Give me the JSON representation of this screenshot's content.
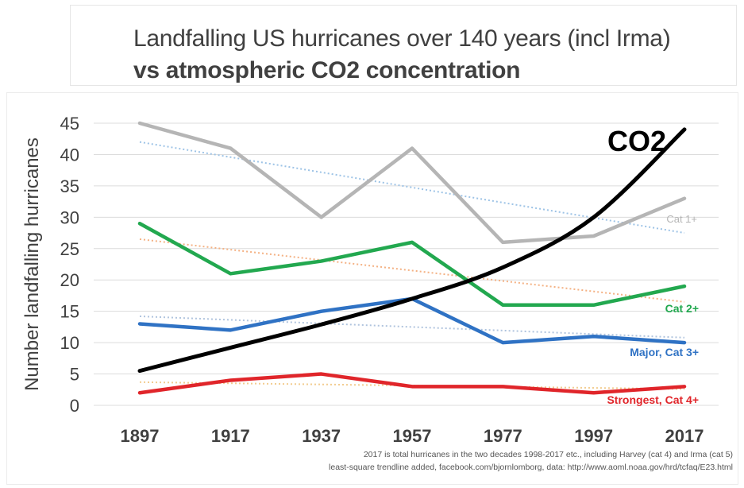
{
  "title_line1": "Landfalling US hurricanes over 140 years (incl Irma)",
  "title_line2": "vs atmospheric CO2 concentration",
  "notes": {
    "line1": "2017 is total hurricanes  in the two decades 1998-2017 etc., including  Harvey (cat 4) and Irma (cat 5)",
    "line2": "least-square trendline  added, facebook.com/bjornlomborg,  data: http://www.aoml.noaa.gov/hrd/tcfaq/E23.html"
  },
  "chart_data": {
    "type": "line",
    "title": "Landfalling US hurricanes over 140 years (incl Irma) vs atmospheric CO2 concentration",
    "ylabel": "Number landfalling hurricanes",
    "xlabel": "",
    "ylim": [
      0,
      45
    ],
    "yticks": [
      0,
      5,
      10,
      15,
      20,
      25,
      30,
      35,
      40,
      45
    ],
    "categories": [
      "1897",
      "1917",
      "1937",
      "1957",
      "1977",
      "1997",
      "2017"
    ],
    "grid": "horizontal",
    "series": [
      {
        "name": "Cat 1+",
        "color": "#b5b5b5",
        "values": [
          45,
          41,
          30,
          41,
          26,
          27,
          33
        ],
        "trend": [
          42,
          27.5
        ],
        "trend_color": "#9dc3e6"
      },
      {
        "name": "Cat 2+",
        "color": "#22a84f",
        "values": [
          29,
          21,
          23,
          26,
          16,
          16,
          19
        ],
        "trend": [
          26.5,
          16.5
        ],
        "trend_color": "#f4b183"
      },
      {
        "name": "Major, Cat 3+",
        "color": "#2f72c4",
        "values": [
          13,
          12,
          15,
          17,
          10,
          11,
          10
        ],
        "trend": [
          14.2,
          10.8
        ],
        "trend_color": "#b0c4de"
      },
      {
        "name": "Strongest, Cat 4+",
        "color": "#e0252a",
        "values": [
          2,
          4,
          5,
          3,
          3,
          2,
          3
        ],
        "trend": [
          3.7,
          2.6
        ],
        "trend_color": "#f2cc8f"
      },
      {
        "name": "CO2",
        "color": "#000000",
        "values": [
          5.5,
          9.2,
          12.9,
          17,
          22,
          30,
          44
        ]
      }
    ]
  }
}
